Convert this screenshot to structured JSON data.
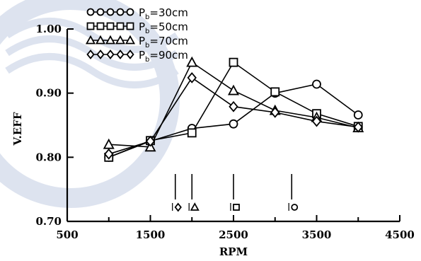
{
  "chart_data": {
    "type": "line",
    "title": "",
    "xlabel": "RPM",
    "ylabel": "V.EFF",
    "xlim": [
      500,
      4500
    ],
    "ylim": [
      0.7,
      1.0
    ],
    "x_ticks": [
      "500",
      "1500",
      "2500",
      "3500",
      "4500"
    ],
    "y_ticks": [
      "0.70",
      "0.80",
      "0.90",
      "1.00"
    ],
    "grid": false,
    "legend_position": "top-left",
    "x": [
      1000,
      1500,
      2000,
      2500,
      3000,
      3500,
      4000
    ],
    "series": [
      {
        "name": "Pb=30cm",
        "label_base": "P",
        "label_sub": "b",
        "label_rest": "=30cm",
        "marker": "circle",
        "values": [
          0.8,
          0.825,
          0.845,
          0.852,
          0.9,
          0.914,
          0.866
        ]
      },
      {
        "name": "Pb=50cm",
        "label_base": "P",
        "label_sub": "b",
        "label_rest": "=50cm",
        "marker": "square",
        "values": [
          0.8,
          0.826,
          0.838,
          0.948,
          0.902,
          0.868,
          0.848
        ]
      },
      {
        "name": "Pb=70cm",
        "label_base": "P",
        "label_sub": "b",
        "label_rest": "=70cm",
        "marker": "triangle",
        "values": [
          0.82,
          0.816,
          0.948,
          0.904,
          0.873,
          0.862,
          0.846
        ]
      },
      {
        "name": "Pb=90cm",
        "label_base": "P",
        "label_sub": "b",
        "label_rest": "=90cm",
        "marker": "diamond",
        "values": [
          0.805,
          0.825,
          0.924,
          0.879,
          0.87,
          0.856,
          0.847
        ]
      }
    ],
    "annotations": [
      {
        "x": 1800,
        "label": "l",
        "marker": "diamond"
      },
      {
        "x": 2000,
        "label": "l",
        "marker": "triangle"
      },
      {
        "x": 2500,
        "label": "l",
        "marker": "square"
      },
      {
        "x": 3200,
        "label": "l",
        "marker": "circle"
      }
    ]
  }
}
